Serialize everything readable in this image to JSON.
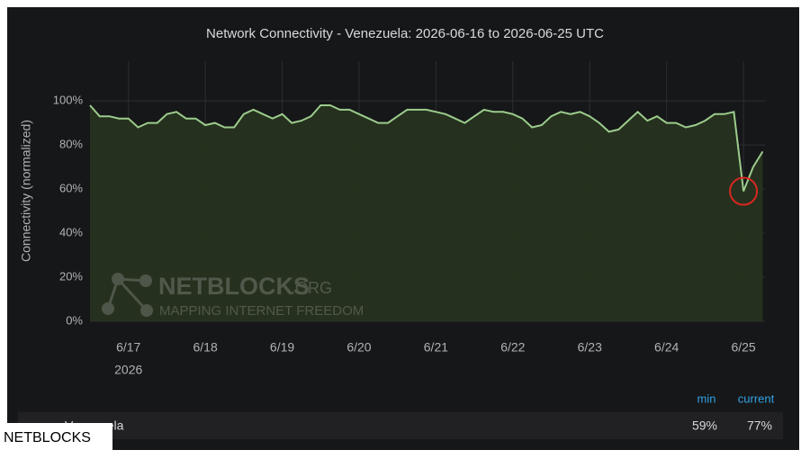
{
  "chart_data": {
    "type": "area",
    "title": "Network Connectivity - Venezuela: 2026-06-16 to 2026-06-25 UTC",
    "ylabel": "Connectivity (normalized)",
    "watermark": {
      "name": "NETBLOCKS",
      "suffix": ".ORG",
      "tagline": "MAPPING INTERNET FREEDOM"
    },
    "xlim": [
      16.5,
      25.28
    ],
    "xticks": [
      {
        "value": 17,
        "label": "6/17"
      },
      {
        "value": 18,
        "label": "6/18"
      },
      {
        "value": 19,
        "label": "6/19"
      },
      {
        "value": 20,
        "label": "6/20"
      },
      {
        "value": 21,
        "label": "6/21"
      },
      {
        "value": 22,
        "label": "6/22"
      },
      {
        "value": 23,
        "label": "6/23"
      },
      {
        "value": 24,
        "label": "6/24"
      },
      {
        "value": 25,
        "label": "6/25"
      }
    ],
    "x_year_label": "2026",
    "ylim": [
      0,
      118
    ],
    "yticks": [
      {
        "value": 0,
        "label": "0%"
      },
      {
        "value": 20,
        "label": "20%"
      },
      {
        "value": 40,
        "label": "40%"
      },
      {
        "value": 60,
        "label": "60%"
      },
      {
        "value": 80,
        "label": "80%"
      },
      {
        "value": 100,
        "label": "100%"
      }
    ],
    "grid": true,
    "highlight_index": 68,
    "highlight_color": "#d8261f",
    "series": [
      {
        "name": "Venezuela",
        "color": "#9ccc8c",
        "fill": "#26331f",
        "x": [
          16.5,
          16.625,
          16.75,
          16.875,
          17,
          17.125,
          17.25,
          17.375,
          17.5,
          17.625,
          17.75,
          17.875,
          18,
          18.125,
          18.25,
          18.375,
          18.5,
          18.625,
          18.75,
          18.875,
          19,
          19.125,
          19.25,
          19.375,
          19.5,
          19.625,
          19.75,
          19.875,
          20,
          20.125,
          20.25,
          20.375,
          20.5,
          20.625,
          20.75,
          20.875,
          21,
          21.125,
          21.25,
          21.375,
          21.5,
          21.625,
          21.75,
          21.875,
          22,
          22.125,
          22.25,
          22.375,
          22.5,
          22.625,
          22.75,
          22.875,
          23,
          23.125,
          23.25,
          23.375,
          23.5,
          23.625,
          23.75,
          23.875,
          24,
          24.125,
          24.25,
          24.375,
          24.5,
          24.625,
          24.75,
          24.875,
          25,
          25.125,
          25.25
        ],
        "values": [
          98,
          93,
          93,
          92,
          92,
          88,
          90,
          90,
          94,
          95,
          92,
          92,
          89,
          90,
          88,
          88,
          94,
          96,
          94,
          92,
          94,
          90,
          91,
          93,
          98,
          98,
          96,
          96,
          94,
          92,
          90,
          90,
          93,
          96,
          96,
          96,
          95,
          94,
          92,
          90,
          93,
          96,
          95,
          95,
          94,
          92,
          88,
          89,
          93,
          95,
          94,
          95,
          93,
          90,
          86,
          87,
          91,
          95,
          91,
          93,
          90,
          90,
          88,
          89,
          91,
          94,
          94,
          95,
          59,
          70,
          77
        ]
      }
    ],
    "legend_table": {
      "columns": [
        "min",
        "current"
      ],
      "rows": [
        {
          "name": "Venezuela",
          "values": [
            59,
            77
          ],
          "value_labels": [
            "59%",
            "77%"
          ]
        }
      ]
    },
    "footer_label": "NETBLOCKS"
  }
}
